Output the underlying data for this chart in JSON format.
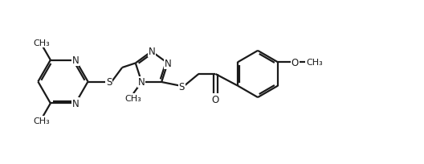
{
  "bg_color": "#ffffff",
  "line_color": "#1a1a1a",
  "line_width": 1.6,
  "font_size": 8.5,
  "figsize": [
    5.28,
    2.05
  ],
  "dpi": 100,
  "xlim": [
    0.0,
    10.5
  ],
  "ylim": [
    0.0,
    3.9
  ]
}
